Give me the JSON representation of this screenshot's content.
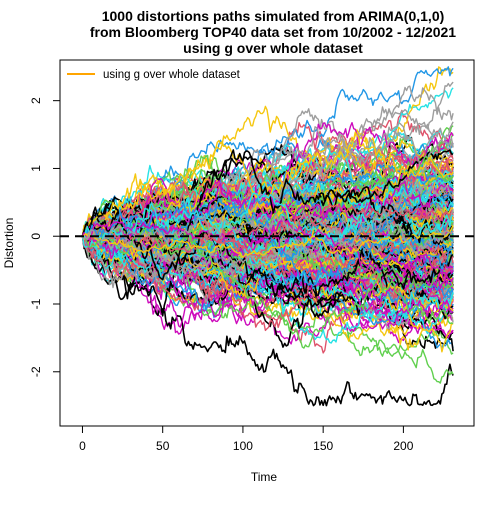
{
  "chart_data": {
    "type": "line",
    "title_lines": [
      "1000 distortions paths simulated from ARIMA(0,1,0)",
      "from Bloomberg TOP40  data set from 10/2002 - 12/2021",
      "using g over whole dataset"
    ],
    "xlabel": "Time",
    "ylabel": "Distortion",
    "xlim": [
      -14,
      244
    ],
    "ylim": [
      -2.8,
      2.6
    ],
    "xticks": [
      0,
      50,
      100,
      150,
      200
    ],
    "yticks": [
      -2,
      -1,
      0,
      1,
      2
    ],
    "n_paths": 1000,
    "n_steps": 231,
    "max_abs_distortion": 2.5,
    "reference_line": {
      "y": 0,
      "style": "dashed",
      "color": "#000000"
    },
    "legend": {
      "position": "top-left",
      "entries": [
        {
          "label": "using g over whole dataset",
          "color": "#FFA500"
        }
      ]
    },
    "grid": false,
    "palette": [
      "#000000",
      "#DF536B",
      "#61D04F",
      "#2297E6",
      "#28E2E5",
      "#CD0BBC",
      "#F5C710",
      "#9E9E9E"
    ]
  }
}
